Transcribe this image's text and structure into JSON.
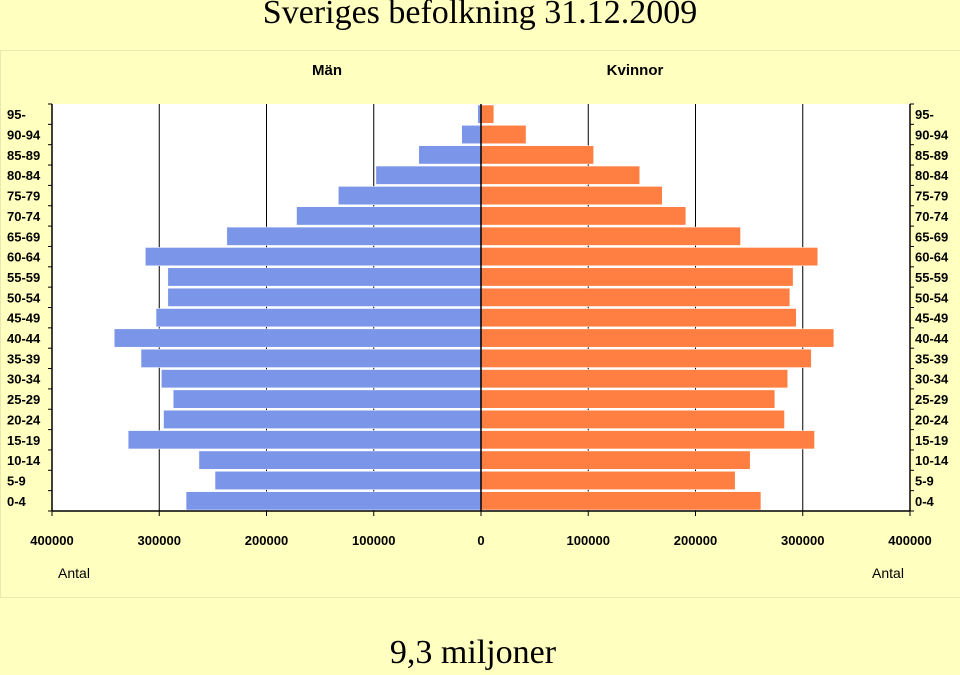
{
  "slide": {
    "title": "Sveriges befolkning 31.12.2009",
    "footer": "9,3 miljoner"
  },
  "chart_data": {
    "type": "bar",
    "orientation": "horizontal",
    "layout": "population-pyramid",
    "categories": [
      "95-",
      "90-94",
      "85-89",
      "80-84",
      "75-79",
      "70-74",
      "65-69",
      "60-64",
      "55-59",
      "50-54",
      "45-49",
      "40-44",
      "35-39",
      "30-34",
      "25-29",
      "20-24",
      "15-19",
      "10-14",
      "5-9",
      "0-4"
    ],
    "series": [
      {
        "name": "Män",
        "color": "#7b96e8",
        "values": [
          3000,
          18000,
          58000,
          98000,
          133000,
          172000,
          237000,
          313000,
          292000,
          292000,
          303000,
          342000,
          317000,
          298000,
          287000,
          296000,
          329000,
          263000,
          248000,
          275000
        ]
      },
      {
        "name": "Kvinnor",
        "color": "#ff7f42",
        "values": [
          12000,
          42000,
          105000,
          148000,
          169000,
          191000,
          242000,
          314000,
          291000,
          288000,
          294000,
          329000,
          308000,
          286000,
          274000,
          283000,
          311000,
          251000,
          237000,
          261000
        ]
      }
    ],
    "x_ticks_left": [
      "400000",
      "300000",
      "200000",
      "100000",
      "0"
    ],
    "x_ticks_right": [
      "100000",
      "200000",
      "300000",
      "400000"
    ],
    "xlim": [
      0,
      400000
    ],
    "xlabel_left": "Antal",
    "xlabel_right": "Antal",
    "grid": true,
    "background": "#ffffff",
    "gridline_color": "#000000"
  }
}
